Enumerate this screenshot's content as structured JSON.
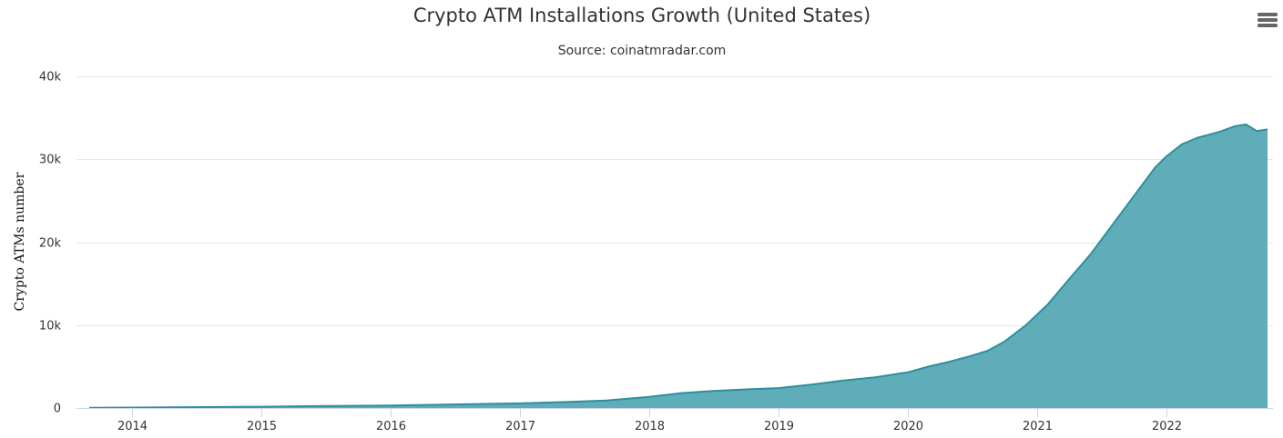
{
  "chart_data": {
    "type": "area",
    "title": "Crypto ATM Installations Growth (United States)",
    "subtitle": "Source: coinatmradar.com",
    "ylabel": "Crypto ATMs number",
    "xlabel": "",
    "ylim": [
      0,
      40000
    ],
    "yticks": [
      0,
      10000,
      20000,
      30000,
      40000
    ],
    "ytick_labels": [
      "0",
      "10k",
      "20k",
      "30k",
      "40k"
    ],
    "xlim": [
      "2013-09-01",
      "2022-10-15"
    ],
    "xticks": [
      "2014-01-01",
      "2015-01-01",
      "2016-01-01",
      "2017-01-01",
      "2018-01-01",
      "2019-01-01",
      "2020-01-01",
      "2021-01-01",
      "2022-01-01"
    ],
    "xtick_labels": [
      "2014",
      "2015",
      "2016",
      "2017",
      "2018",
      "2019",
      "2020",
      "2021",
      "2022"
    ],
    "grid": true,
    "legend": "none",
    "color": "#56a9b4",
    "line_color": "#2f8f9c",
    "series": [
      {
        "x": [
          "2013-09-01",
          "2014-01-01",
          "2014-06-01",
          "2015-01-01",
          "2015-06-01",
          "2016-01-01",
          "2016-06-01",
          "2017-01-01",
          "2017-06-01",
          "2017-09-01",
          "2018-01-01",
          "2018-04-01",
          "2018-07-01",
          "2018-10-01",
          "2019-01-01",
          "2019-04-01",
          "2019-07-01",
          "2019-10-01",
          "2020-01-01",
          "2020-03-01",
          "2020-05-01",
          "2020-07-01",
          "2020-08-15",
          "2020-10-01",
          "2020-12-01",
          "2021-02-01",
          "2021-04-01",
          "2021-06-01",
          "2021-08-01",
          "2021-10-01",
          "2021-12-01",
          "2022-01-01",
          "2022-02-15",
          "2022-04-01",
          "2022-06-01",
          "2022-07-15",
          "2022-08-15",
          "2022-09-15",
          "2022-10-15"
        ],
        "y": [
          30,
          50,
          100,
          150,
          230,
          300,
          420,
          560,
          760,
          900,
          1350,
          1800,
          2050,
          2250,
          2400,
          2800,
          3300,
          3700,
          4300,
          5000,
          5600,
          6300,
          6900,
          8000,
          10000,
          12500,
          15500,
          18500,
          22000,
          25500,
          29000,
          30300,
          31800,
          32600,
          33300,
          34000,
          34200,
          33400,
          33600
        ]
      }
    ]
  },
  "ui": {
    "menu_icon": "hamburger-menu-icon"
  }
}
